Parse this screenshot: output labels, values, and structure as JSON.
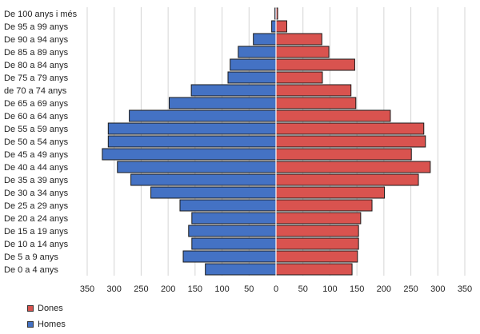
{
  "chart_data": {
    "type": "bar",
    "orientation": "horizontal",
    "subtype": "population-pyramid",
    "categories": [
      "De 100 anys i més",
      "De 95 a 99 anys",
      "De 90 a 94 anys",
      "De 85 a 89 anys",
      "De 80 a 84 anys",
      "De 75 a 79 anys",
      "de 70 a 74 anys",
      "De 65 a 69 anys",
      "De 60 a 64 anys",
      "De 55 a 59 anys",
      "De 50 a 54 anys",
      "De 45 a 49 anys",
      "De 40 a 44 anys",
      "De 35 a 39 anys",
      "De 30 a 34 anys",
      "De 25 a 29 anys",
      "De 20 a 24 anys",
      "De 15 a 19 anys",
      "De 10 a 14 anys",
      "De 5 a 9 anys",
      "De 0 a 4 anys"
    ],
    "series": [
      {
        "name": "Homes",
        "side": "left",
        "color": "#4472C4",
        "values": [
          2,
          8,
          42,
          70,
          85,
          89,
          157,
          198,
          272,
          311,
          311,
          322,
          294,
          269,
          232,
          178,
          156,
          162,
          156,
          172,
          131
        ]
      },
      {
        "name": "Dones",
        "side": "right",
        "color": "#D9534F",
        "values": [
          3,
          20,
          85,
          98,
          146,
          86,
          139,
          148,
          212,
          274,
          277,
          251,
          286,
          264,
          201,
          178,
          157,
          153,
          153,
          151,
          141
        ]
      }
    ],
    "xlim": [
      -350,
      350
    ],
    "xticks": [
      -350,
      -300,
      -250,
      -200,
      -150,
      -100,
      -50,
      0,
      50,
      100,
      150,
      200,
      250,
      300,
      350
    ],
    "xtick_labels": [
      "350",
      "300",
      "250",
      "200",
      "150",
      "100",
      "50",
      "0",
      "50",
      "100",
      "150",
      "200",
      "250",
      "300",
      "350"
    ],
    "grid": true,
    "legend_position": "bottom-left",
    "title": "",
    "xlabel": "",
    "ylabel": ""
  },
  "legend": {
    "items": [
      {
        "label": "Dones",
        "color": "#D9534F"
      },
      {
        "label": "Homes",
        "color": "#4472C4"
      }
    ]
  }
}
